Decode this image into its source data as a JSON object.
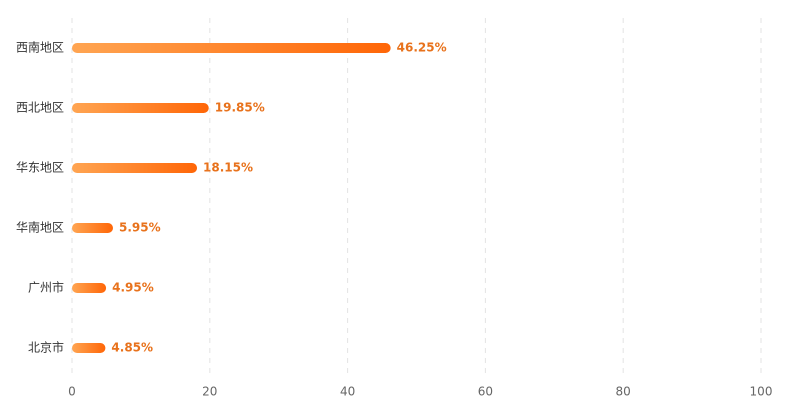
{
  "chart_data": {
    "type": "bar",
    "orientation": "horizontal",
    "categories": [
      "西南地区",
      "西北地区",
      "华东地区",
      "华南地区",
      "广州市",
      "北京市"
    ],
    "values": [
      46.25,
      19.85,
      18.15,
      5.95,
      4.95,
      4.85
    ],
    "value_labels": [
      "46.25%",
      "19.85%",
      "18.15%",
      "5.95%",
      "4.95%",
      "4.85%"
    ],
    "gradient": [
      "#ffa552",
      "#ff6607"
    ],
    "label_color": "#e8721c",
    "xlim": [
      0,
      100
    ],
    "xticks": [
      0,
      20,
      40,
      60,
      80,
      100
    ],
    "grid": true
  }
}
